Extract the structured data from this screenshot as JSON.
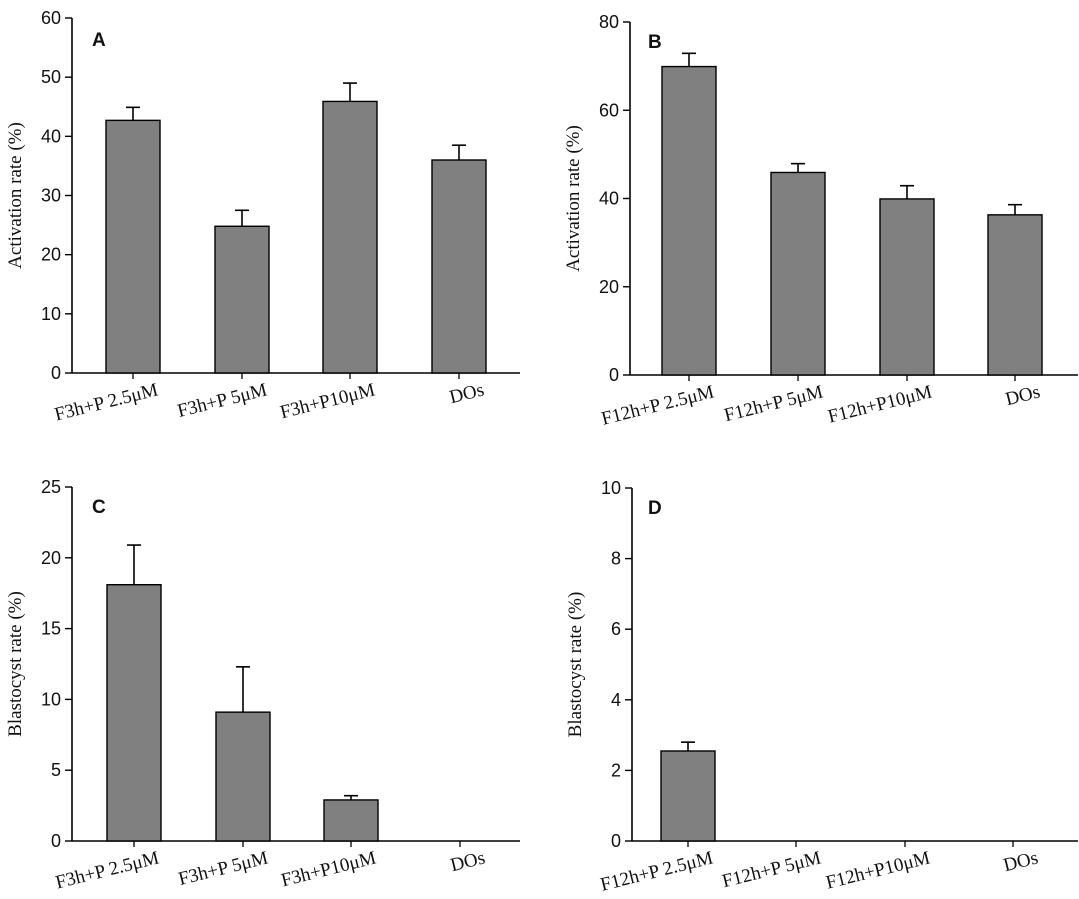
{
  "chart_data": [
    {
      "panel_label": "A",
      "type": "bar",
      "ylabel": "Activation rate (%)",
      "ylim": [
        0,
        60
      ],
      "yticks": [
        "0",
        "10",
        "20",
        "30",
        "40",
        "50",
        "60"
      ],
      "categories": [
        "F3h+P 2.5μM",
        "F3h+P 5μM",
        "F3h+P10μM",
        "DOs"
      ],
      "values": [
        42.7,
        24.8,
        45.9,
        36.0
      ],
      "errors": [
        2.2,
        2.7,
        3.1,
        2.5
      ],
      "bar_color": "#808080"
    },
    {
      "panel_label": "B",
      "type": "bar",
      "ylabel": "Activation rate (%)",
      "ylim": [
        0,
        80
      ],
      "yticks": [
        "0",
        "20",
        "40",
        "60",
        "80"
      ],
      "categories": [
        "F12h+P 2.5μM",
        "F12h+P 5μM",
        "F12h+P10μM",
        "DOs"
      ],
      "values": [
        69.9,
        45.9,
        39.9,
        36.3
      ],
      "errors": [
        3.0,
        2.0,
        3.0,
        2.3
      ],
      "bar_color": "#808080"
    },
    {
      "panel_label": "C",
      "type": "bar",
      "ylabel": "Blastocyst rate (%)",
      "ylim": [
        0,
        25
      ],
      "yticks": [
        "0",
        "5",
        "10",
        "15",
        "20",
        "25"
      ],
      "categories": [
        "F3h+P 2.5μM",
        "F3h+P 5μM",
        "F3h+P10μM",
        "DOs"
      ],
      "values": [
        18.1,
        9.1,
        2.9,
        0
      ],
      "errors": [
        2.8,
        3.2,
        0.3,
        0
      ],
      "bar_color": "#808080"
    },
    {
      "panel_label": "D",
      "type": "bar",
      "ylabel": "Blastocyst rate (%)",
      "ylim": [
        0,
        10
      ],
      "yticks": [
        "0",
        "2",
        "4",
        "6",
        "8",
        "10"
      ],
      "categories": [
        "F12h+P 2.5μM",
        "F12h+P 5μM",
        "F12h+P10μM",
        "DOs"
      ],
      "values": [
        2.55,
        0,
        0,
        0
      ],
      "errors": [
        0.25,
        0,
        0,
        0
      ],
      "bar_color": "#808080"
    }
  ]
}
